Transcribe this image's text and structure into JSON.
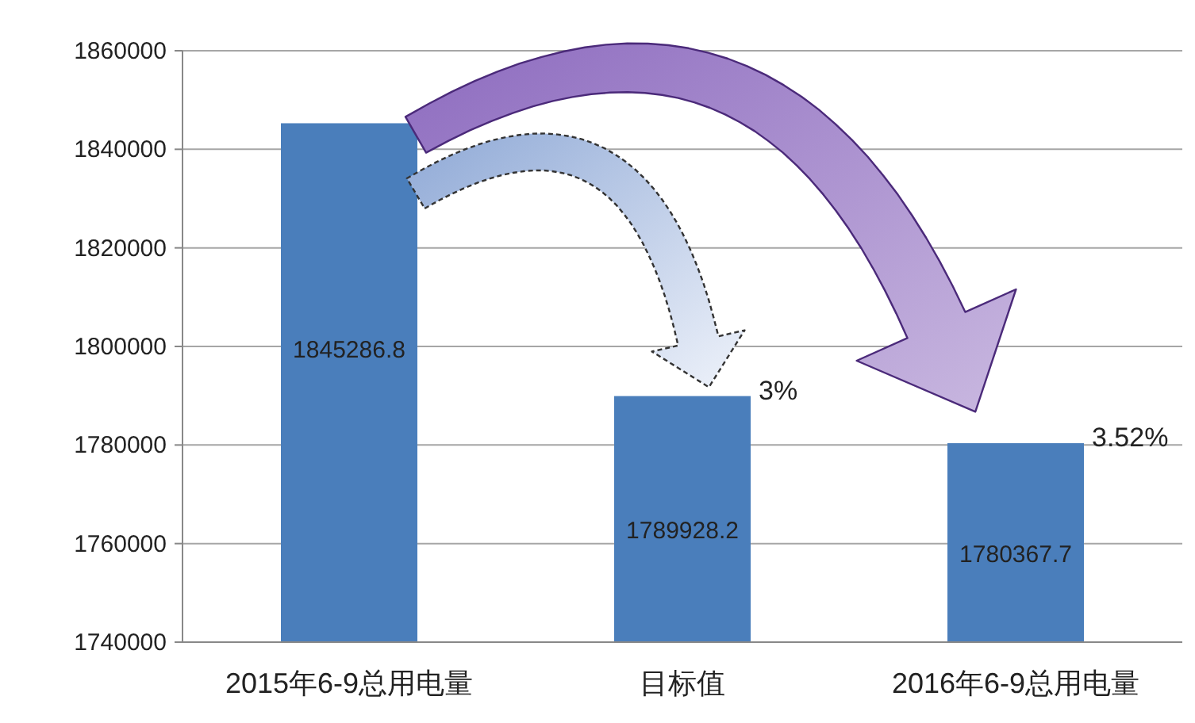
{
  "chart_data": {
    "type": "bar",
    "categories": [
      "2015年6-9总用电量",
      "目标值",
      "2016年6-9总用电量"
    ],
    "values": [
      1845286.8,
      1789928.2,
      1780367.7
    ],
    "color": "#4a7ebb",
    "ylim": [
      1740000,
      1860000
    ],
    "yticks": [
      1740000,
      1760000,
      1780000,
      1800000,
      1820000,
      1840000,
      1860000
    ],
    "grid": "y",
    "data_labels": true,
    "annotations": [
      {
        "text": "3%",
        "x": "目标值",
        "y": 1789928.2
      },
      {
        "text": "3.52%",
        "x": "2016年6-9总用电量",
        "y": 1780367.7
      }
    ]
  }
}
